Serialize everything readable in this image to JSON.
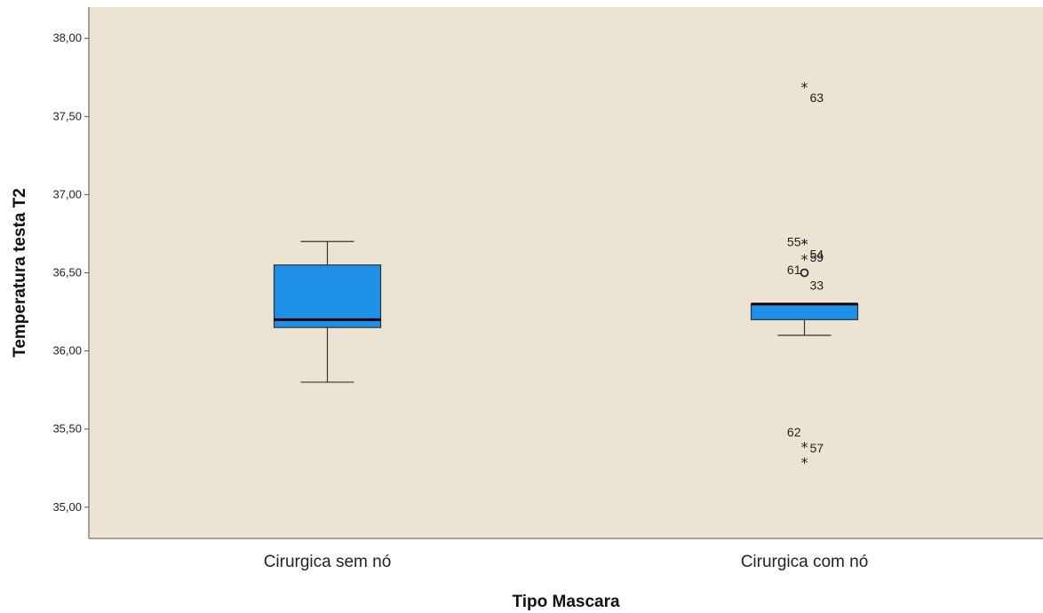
{
  "chart_data": {
    "type": "boxplot",
    "xlabel": "Tipo Mascara",
    "ylabel": "Temperatura testa T2",
    "ylim": [
      34.8,
      38.2
    ],
    "yticks": [
      35.0,
      35.5,
      36.0,
      36.5,
      37.0,
      37.5,
      38.0
    ],
    "ytick_labels": [
      "35,00",
      "35,50",
      "36,00",
      "36,50",
      "37,00",
      "37,50",
      "38,00"
    ],
    "grid": false,
    "colors": {
      "plot_background": "#ece4d2",
      "box_fill": "#1e90e6",
      "frame": "#555555"
    },
    "categories": [
      "Cirurgica sem nó",
      "Cirurgica com nó"
    ],
    "boxes": [
      {
        "category": "Cirurgica sem nó",
        "whisker_low": 35.8,
        "q1": 36.15,
        "median": 36.2,
        "q3": 36.55,
        "whisker_high": 36.7,
        "outliers": []
      },
      {
        "category": "Cirurgica com nó",
        "whisker_low": 36.1,
        "q1": 36.2,
        "median": 36.3,
        "q3": 36.3,
        "whisker_high": 36.3,
        "outliers": [
          {
            "value": 37.7,
            "label": "63",
            "marker": "extreme",
            "label_side": "right",
            "label_dy": -0.08
          },
          {
            "value": 36.7,
            "label": "54",
            "marker": "extreme",
            "label_side": "right",
            "label_dy": -0.08
          },
          {
            "value": 36.7,
            "label": "55",
            "marker": "extreme",
            "label_side": "left",
            "label_dy": 0.0
          },
          {
            "value": 36.6,
            "label": "59",
            "marker": "extreme",
            "label_side": "right",
            "label_dy": 0.0
          },
          {
            "value": 36.5,
            "label": "61",
            "marker": "outlier",
            "label_side": "left",
            "label_dy": 0.02
          },
          {
            "value": 36.5,
            "label": "33",
            "marker": "outlier",
            "label_side": "right",
            "label_dy": -0.08
          },
          {
            "value": 35.4,
            "label": "62",
            "marker": "extreme",
            "label_side": "left",
            "label_dy": 0.08
          },
          {
            "value": 35.3,
            "label": "57",
            "marker": "extreme",
            "label_side": "right",
            "label_dy": 0.08
          }
        ]
      }
    ]
  }
}
